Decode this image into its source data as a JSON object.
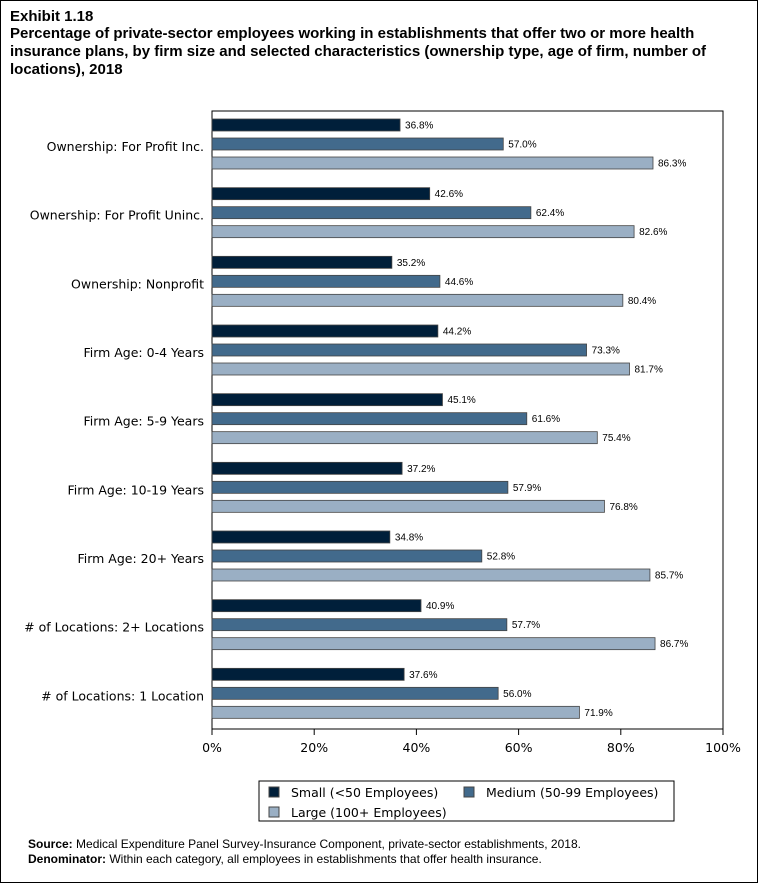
{
  "exhibit": "Exhibit 1.18",
  "title": "Percentage of private-sector employees working in establishments that offer two or more health insurance plans, by firm size and selected characteristics (ownership type, age of firm, number of locations), 2018",
  "source_label": "Source:",
  "source_text": " Medical Expenditure Panel Survey-Insurance Component, private-sector establishments, 2018.",
  "denominator_label": "Denominator:",
  "denominator_text": " Within each category, all employees in establishments that offer health insurance.",
  "chart_data": {
    "type": "bar",
    "orientation": "horizontal",
    "categories": [
      "Ownership: For Profit Inc.",
      "Ownership: For Profit Uninc.",
      "Ownership: Nonprofit",
      "Firm Age: 0-4 Years",
      "Firm Age: 5-9 Years",
      "Firm Age: 10-19 Years",
      "Firm Age: 20+ Years",
      "# of Locations: 2+ Locations",
      "# of Locations: 1 Location"
    ],
    "series": [
      {
        "name": "Small (<50 Employees)",
        "color": "#001f3a",
        "values": [
          36.8,
          42.6,
          35.2,
          44.2,
          45.1,
          37.2,
          34.8,
          40.9,
          37.6
        ]
      },
      {
        "name": "Medium (50-99 Employees)",
        "color": "#426a8c",
        "values": [
          57.0,
          62.4,
          44.6,
          73.3,
          61.6,
          57.9,
          52.8,
          57.7,
          56.0
        ]
      },
      {
        "name": "Large (100+ Employees)",
        "color": "#9aafc4",
        "values": [
          86.3,
          82.6,
          80.4,
          81.7,
          75.4,
          76.8,
          85.7,
          86.7,
          71.9
        ]
      }
    ],
    "xlim": [
      0,
      100
    ],
    "xticks": [
      "0%",
      "20%",
      "40%",
      "60%",
      "80%",
      "100%"
    ],
    "value_suffix": "%",
    "grid": false,
    "legend_position": "bottom"
  }
}
